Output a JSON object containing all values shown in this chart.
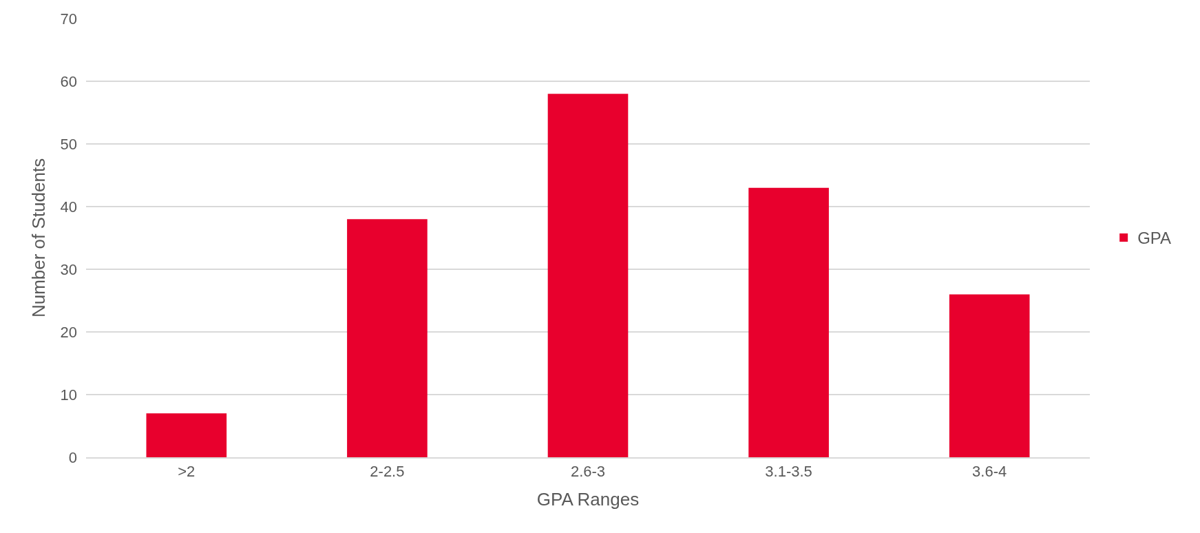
{
  "chart_data": {
    "type": "bar",
    "xlabel": "GPA Ranges",
    "ylabel": "Number of Students",
    "categories": [
      ">2",
      "2-2.5",
      "2.6-3",
      "3.1-3.5",
      "3.6-4"
    ],
    "series": [
      {
        "name": "GPA",
        "color": "#e8002d",
        "values": [
          7,
          38,
          58,
          43,
          26
        ]
      }
    ],
    "ylim": [
      0,
      70
    ],
    "yticks": [
      0,
      10,
      20,
      30,
      40,
      50,
      60,
      70
    ],
    "grid": "y",
    "legend": "right"
  }
}
